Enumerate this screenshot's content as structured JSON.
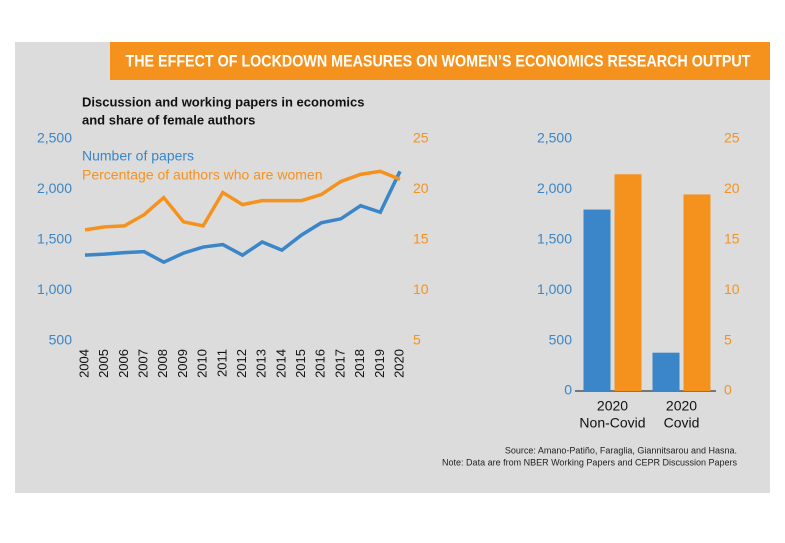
{
  "title": "THE EFFECT OF LOCKDOWN MEASURES ON WOMEN’S ECONOMICS RESEARCH OUTPUT",
  "source": [
    "Source: Amano-Patiño, Faraglia, Giannitsarou and Hasna.",
    "Note: Data are from NBER Working Papers and CEPR Discussion Papers"
  ],
  "chart_data": [
    {
      "type": "line",
      "title": [
        "Discussion and working papers in economics",
        "and share of female authors"
      ],
      "x": [
        2004,
        2005,
        2006,
        2007,
        2008,
        2009,
        2010,
        2011,
        2012,
        2013,
        2014,
        2015,
        2016,
        2017,
        2018,
        2019,
        2020
      ],
      "xlim": [
        2004,
        2020
      ],
      "series": [
        {
          "name": "Number of papers",
          "color": "#3a86c8",
          "values": [
            1350,
            1360,
            1375,
            1385,
            1280,
            1370,
            1430,
            1455,
            1350,
            1480,
            1400,
            1550,
            1670,
            1710,
            1840,
            1775,
            2180
          ]
        },
        {
          "name": "Percentage of authors who are women",
          "color": "#f5921e",
          "axis": "y2",
          "values": [
            16,
            16.3,
            16.4,
            17.5,
            19.2,
            16.8,
            16.4,
            19.7,
            18.5,
            18.9,
            18.9,
            18.9,
            19.5,
            20.8,
            21.5,
            21.8,
            21
          ]
        }
      ],
      "ylim": [
        500,
        2500
      ],
      "yticks": [
        {
          "value": 500,
          "label": "500"
        },
        {
          "value": 1000,
          "label": "1,000"
        },
        {
          "value": 1500,
          "label": "1,500"
        },
        {
          "value": 2000,
          "label": "2,000"
        },
        {
          "value": 2500,
          "label": "2,500"
        }
      ],
      "y2lim": [
        5,
        25
      ],
      "y2ticks": [
        5,
        10,
        15,
        20,
        25
      ]
    },
    {
      "type": "bar",
      "categories": [
        [
          "2020",
          "Non-Covid"
        ],
        [
          "2020",
          "Covid"
        ]
      ],
      "series": [
        {
          "color": "#3a86c8",
          "values": [
            1800,
            380
          ]
        },
        {
          "color": "#f5921e",
          "axis": "y2",
          "values": [
            21.5,
            19.5
          ]
        }
      ],
      "ylim": [
        0,
        2500
      ],
      "yticks": [
        0,
        {
          "value": 500,
          "label": "500"
        },
        {
          "value": 1000,
          "label": "1,000"
        },
        {
          "value": 1500,
          "label": "1,500"
        },
        {
          "value": 2000,
          "label": "2,000"
        },
        {
          "value": 2500,
          "label": "2,500"
        }
      ],
      "y2lim": [
        0,
        25
      ],
      "y2ticks": [
        0,
        5,
        10,
        15,
        20,
        25
      ]
    }
  ]
}
